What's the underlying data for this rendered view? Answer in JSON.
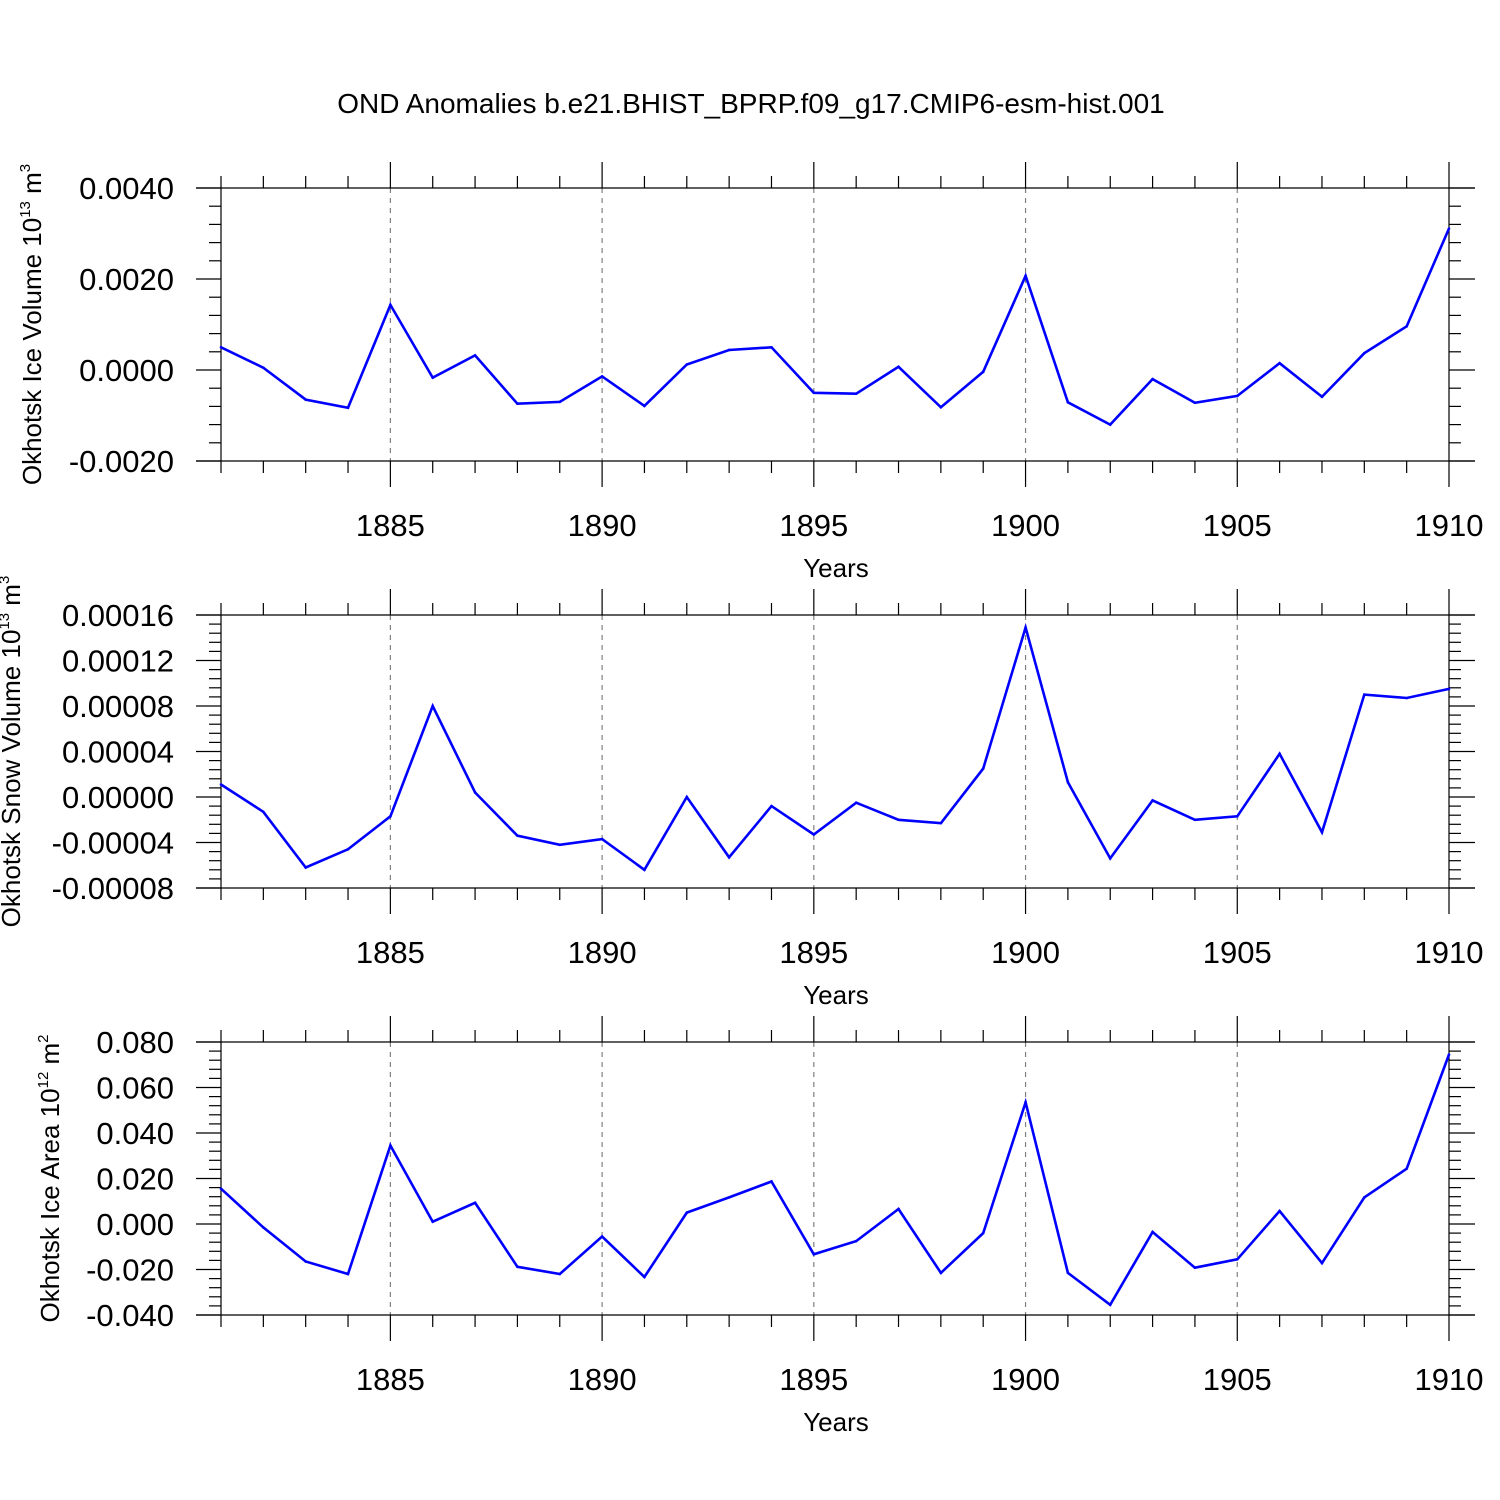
{
  "title": "OND Anomalies b.e21.BHIST_BPRP.f09_g17.CMIP6-esm-hist.001",
  "colors": {
    "series": "#0000ff",
    "axis": "#000000",
    "grid": "#808080"
  },
  "chart_data": [
    {
      "type": "line",
      "ylabel": {
        "text": "Okhotsk Ice Volume 10",
        "sup": "13",
        "unit": " m",
        "unit_sup": "3"
      },
      "xlabel": "Years",
      "xlim": [
        1881,
        1910
      ],
      "ylim": [
        -0.002,
        0.004
      ],
      "yticks": [
        -0.002,
        0.0,
        0.002,
        0.004
      ],
      "ytick_labels": [
        "-0.0020",
        "0.0000",
        "0.0020",
        "0.0040"
      ],
      "xticks": [
        1885,
        1890,
        1895,
        1900,
        1905,
        1910
      ],
      "xtick_labels": [
        "1885",
        "1890",
        "1895",
        "1900",
        "1905",
        "1910"
      ],
      "x": [
        1881,
        1882,
        1883,
        1884,
        1885,
        1886,
        1887,
        1888,
        1889,
        1890,
        1891,
        1892,
        1893,
        1894,
        1895,
        1896,
        1897,
        1898,
        1899,
        1900,
        1901,
        1902,
        1903,
        1904,
        1905,
        1906,
        1907,
        1908,
        1909,
        1910
      ],
      "values": [
        0.0005,
        5e-05,
        -0.00065,
        -0.00083,
        0.00143,
        -0.00017,
        0.00032,
        -0.00074,
        -0.0007,
        -0.00014,
        -0.00079,
        0.00012,
        0.00044,
        0.0005,
        -0.0005,
        -0.00052,
        7e-05,
        -0.00082,
        -4e-05,
        0.00207,
        -0.00071,
        -0.0012,
        -0.0002,
        -0.00072,
        -0.00057,
        0.00015,
        -0.00059,
        0.00037,
        0.00096,
        0.00311
      ]
    },
    {
      "type": "line",
      "ylabel": {
        "text": "Okhotsk Snow Volume 10",
        "sup": "13",
        "unit": " m",
        "unit_sup": "3"
      },
      "xlabel": "Years",
      "xlim": [
        1881,
        1910
      ],
      "ylim": [
        -8e-05,
        0.00016
      ],
      "yticks": [
        -8e-05,
        -4e-05,
        0.0,
        4e-05,
        8e-05,
        0.00012,
        0.00016
      ],
      "ytick_labels": [
        "-0.00008",
        "-0.00004",
        "0.00000",
        "0.00004",
        "0.00008",
        "0.00012",
        "0.00016"
      ],
      "xticks": [
        1885,
        1890,
        1895,
        1900,
        1905,
        1910
      ],
      "xtick_labels": [
        "1885",
        "1890",
        "1895",
        "1900",
        "1905",
        "1910"
      ],
      "x": [
        1881,
        1882,
        1883,
        1884,
        1885,
        1886,
        1887,
        1888,
        1889,
        1890,
        1891,
        1892,
        1893,
        1894,
        1895,
        1896,
        1897,
        1898,
        1899,
        1900,
        1901,
        1902,
        1903,
        1904,
        1905,
        1906,
        1907,
        1908,
        1909,
        1910
      ],
      "values": [
        1.1e-05,
        -1.3e-05,
        -6.2e-05,
        -4.6e-05,
        -1.7e-05,
        8e-05,
        4e-06,
        -3.4e-05,
        -4.2e-05,
        -3.7e-05,
        -6.4e-05,
        0.0,
        -5.3e-05,
        -8e-06,
        -3.3e-05,
        -5e-06,
        -2e-05,
        -2.3e-05,
        2.5e-05,
        0.000149,
        1.3e-05,
        -5.4e-05,
        -3e-06,
        -2e-05,
        -1.7e-05,
        3.8e-05,
        -3.1e-05,
        9e-05,
        8.7e-05,
        9.5e-05
      ]
    },
    {
      "type": "line",
      "ylabel": {
        "text": "Okhotsk Ice Area 10",
        "sup": "12",
        "unit": " m",
        "unit_sup": "2"
      },
      "xlabel": "Years",
      "xlim": [
        1881,
        1910
      ],
      "ylim": [
        -0.04,
        0.08
      ],
      "yticks": [
        -0.04,
        -0.02,
        0.0,
        0.02,
        0.04,
        0.06,
        0.08
      ],
      "ytick_labels": [
        "-0.040",
        "-0.020",
        "0.000",
        "0.020",
        "0.040",
        "0.060",
        "0.080"
      ],
      "xticks": [
        1885,
        1890,
        1895,
        1900,
        1905,
        1910
      ],
      "xtick_labels": [
        "1885",
        "1890",
        "1895",
        "1900",
        "1905",
        "1910"
      ],
      "x": [
        1881,
        1882,
        1883,
        1884,
        1885,
        1886,
        1887,
        1888,
        1889,
        1890,
        1891,
        1892,
        1893,
        1894,
        1895,
        1896,
        1897,
        1898,
        1899,
        1900,
        1901,
        1902,
        1903,
        1904,
        1905,
        1906,
        1907,
        1908,
        1909,
        1910
      ],
      "values": [
        0.0155,
        -0.0015,
        -0.0165,
        -0.022,
        0.0345,
        0.001,
        0.0093,
        -0.0188,
        -0.022,
        -0.0055,
        -0.0233,
        0.005,
        0.0117,
        0.0187,
        -0.0133,
        -0.0075,
        0.0066,
        -0.0215,
        -0.004,
        0.0535,
        -0.0215,
        -0.0355,
        -0.0035,
        -0.0192,
        -0.0155,
        0.0057,
        -0.0172,
        0.0117,
        0.0243,
        0.0745
      ]
    }
  ]
}
